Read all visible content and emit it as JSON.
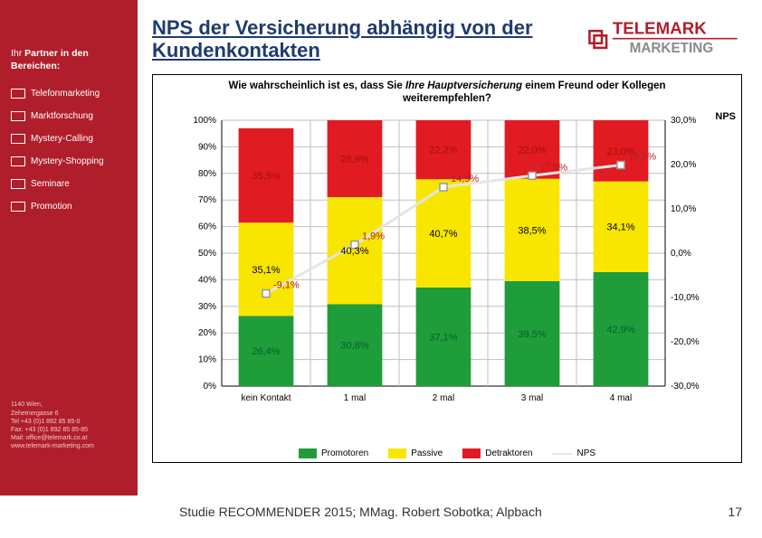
{
  "title": "NPS der Versicherung abhängig von der Kundenkontakten",
  "logo": {
    "line1": "TELEMARK",
    "line2": "MARKETING",
    "red": "#b11e2b",
    "gray": "#8a8a8a"
  },
  "sidebar": {
    "heading_pre": "Ihr ",
    "heading_bold": "Partner in den Bereichen:",
    "items": [
      "Telefonmarketing",
      "Marktforschung",
      "Mystery-Calling",
      "Mystery-Shopping",
      "Seminare",
      "Promotion"
    ],
    "contact": [
      "1140 Wien,",
      "Zehetnergasse 6",
      "Tel +43 (0)1 892 85 85-0",
      "Fax: +43 (0)1 892 85 85-85",
      "Mail: office@telemark.co.at",
      "www.telemark-marketing.com"
    ]
  },
  "footer": "Studie RECOMMENDER 2015; MMag. Robert Sobotka; Alpbach",
  "page_number": "17",
  "chart": {
    "title": "Wie wahrscheinlich ist es, dass Sie Ihre Hauptversicherung einem Freund oder Kollegen weiterempfehlen?",
    "title_italic_part": "Ihre Hauptversicherung",
    "categories": [
      "kein Kontakt",
      "1 mal",
      "2 mal",
      "3 mal",
      "4 mal"
    ],
    "series": {
      "promotoren": {
        "label": "Promotoren",
        "color": "#1f9d3a",
        "values": [
          26.4,
          30.8,
          37.1,
          39.5,
          42.9
        ],
        "label_color": "#06602e"
      },
      "passive": {
        "label": "Passive",
        "color": "#f8e500",
        "values": [
          35.1,
          40.3,
          40.7,
          38.5,
          34.1
        ],
        "label_color": "#000"
      },
      "detraktoren": {
        "label": "Detraktoren",
        "color": "#e11b22",
        "values": [
          35.5,
          28.9,
          22.2,
          22.0,
          23.0
        ],
        "label_color": "#a00f12"
      }
    },
    "nps": {
      "label": "NPS",
      "color": "#e5e5e5",
      "marker_border": "#999",
      "values": [
        -9.1,
        1.9,
        14.9,
        17.5,
        19.9
      ],
      "label_color": "#b11e2b"
    },
    "left_axis": {
      "min": 0,
      "max": 100,
      "step": 10,
      "fmt": "pct"
    },
    "right_axis": {
      "min": -30,
      "max": 30,
      "step": 10,
      "fmt": "pct1",
      "title": "NPS"
    },
    "bar_width_ratio": 0.62,
    "label_offsets": {
      "promotoren": [
        0,
        0,
        0,
        0,
        0
      ],
      "passive": [
        0,
        0,
        0,
        0,
        0
      ],
      "detraktoren": [
        0,
        0,
        0,
        0,
        0
      ]
    },
    "background": "#ffffff",
    "grid_color": "#bfbfbf"
  }
}
